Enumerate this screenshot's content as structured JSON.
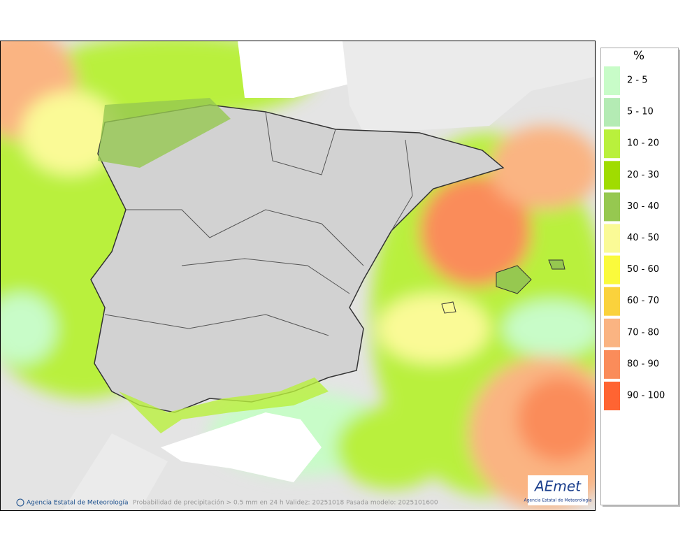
{
  "map": {
    "caption": "Probabilidad de precipitación > 0.5 mm en 24 h Validez: 20251018 Pasada modelo: 2025101600",
    "credit": "Agencia Estatal de Meteorología",
    "logo": {
      "text": "AEmet",
      "subtitle": "Agencia Estatal de Meteorología"
    }
  },
  "legend": {
    "title": "%",
    "items": [
      {
        "label": "2 - 5",
        "color": "#c8fcc8"
      },
      {
        "label": "5 - 10",
        "color": "#b4ebb4"
      },
      {
        "label": "10 - 20",
        "color": "#b9f03c"
      },
      {
        "label": "20 - 30",
        "color": "#a0dc00"
      },
      {
        "label": "30 - 40",
        "color": "#96c850"
      },
      {
        "label": "40 - 50",
        "color": "#fafa96"
      },
      {
        "label": "50 - 60",
        "color": "#fafa3c"
      },
      {
        "label": "60 - 70",
        "color": "#fad23c"
      },
      {
        "label": "70 - 80",
        "color": "#fab482"
      },
      {
        "label": "80 - 90",
        "color": "#fa8c5a"
      },
      {
        "label": "90 - 100",
        "color": "#ff6432"
      }
    ]
  }
}
